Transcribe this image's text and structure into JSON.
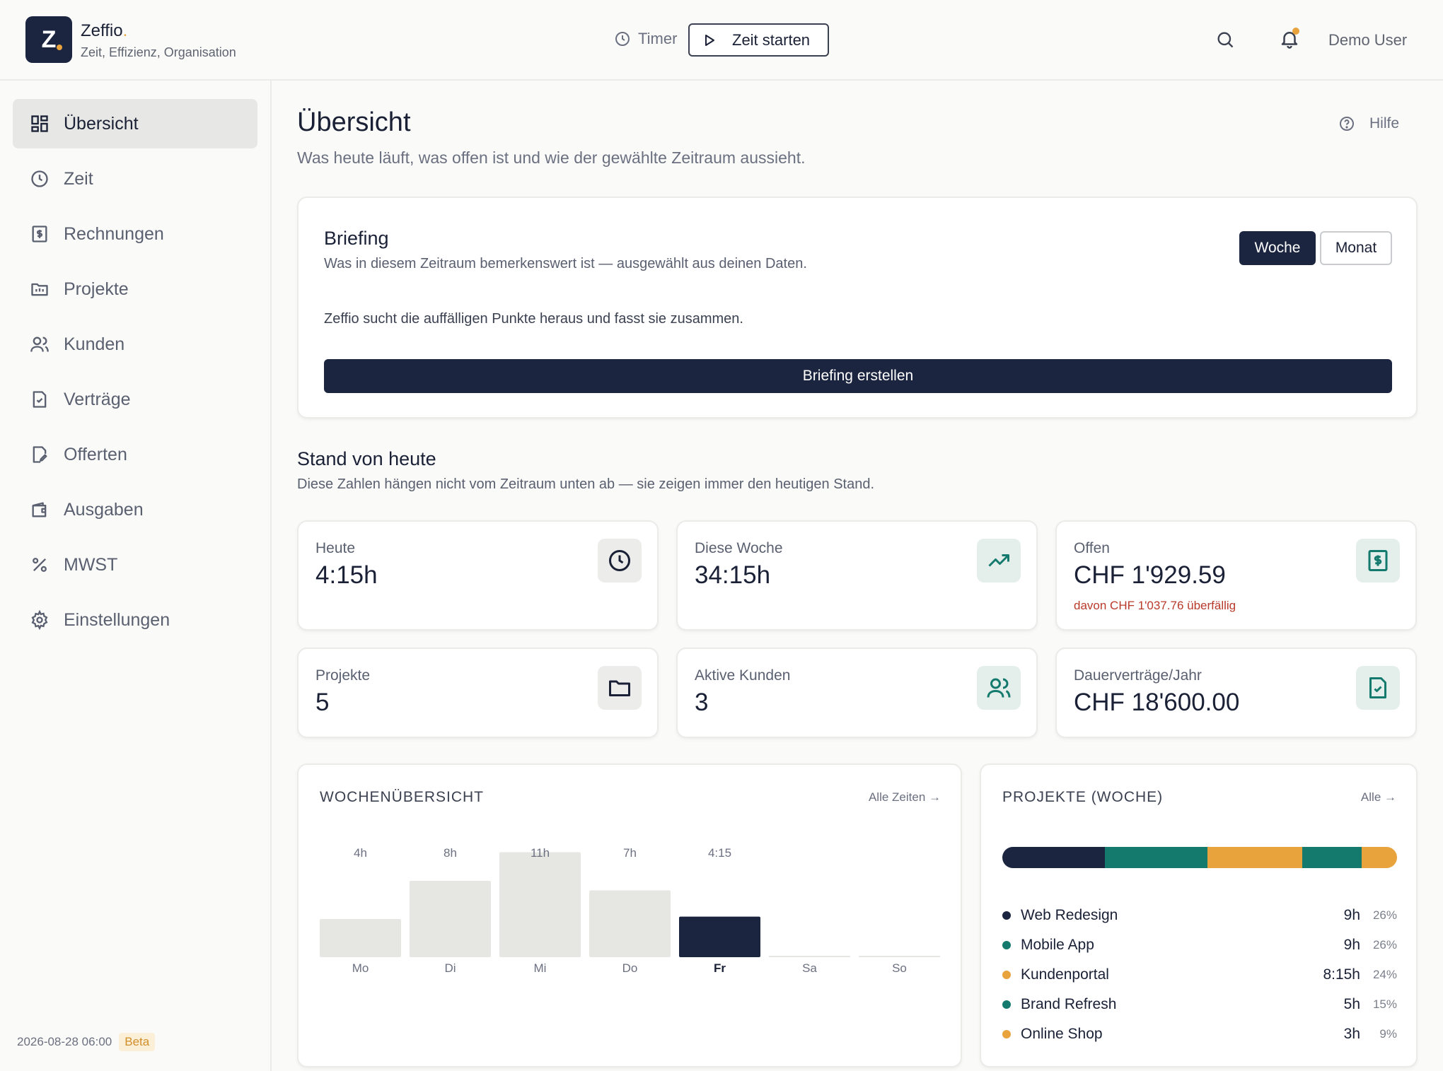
{
  "app": {
    "name": "Zeffio",
    "name_dot": ".",
    "logo_letter": "Z",
    "tagline": "Zeit, Effizienz, Organisation"
  },
  "header": {
    "timer_label": "Timer",
    "start_label": "Zeit starten",
    "user": "Demo User"
  },
  "sidebar": {
    "items": [
      {
        "label": "Übersicht",
        "icon": "dashboard-icon",
        "active": true
      },
      {
        "label": "Zeit",
        "icon": "clock-icon"
      },
      {
        "label": "Rechnungen",
        "icon": "invoice-icon"
      },
      {
        "label": "Projekte",
        "icon": "folder-icon"
      },
      {
        "label": "Kunden",
        "icon": "users-icon"
      },
      {
        "label": "Verträge",
        "icon": "contract-icon"
      },
      {
        "label": "Offerten",
        "icon": "offer-icon"
      },
      {
        "label": "Ausgaben",
        "icon": "wallet-icon"
      },
      {
        "label": "MWST",
        "icon": "percent-icon"
      },
      {
        "label": "Einstellungen",
        "icon": "gear-icon"
      }
    ],
    "timestamp": "2026-08-28 06:00",
    "badge": "Beta"
  },
  "page": {
    "title": "Übersicht",
    "subtitle": "Was heute läuft, was offen ist und wie der gewählte Zeitraum aussieht.",
    "help": "Hilfe"
  },
  "briefing": {
    "title": "Briefing",
    "subtitle": "Was in diesem Zeitraum bemerkenswert ist — ausgewählt aus deinen Daten.",
    "text": "Zeffio sucht die auffälligen Punkte heraus und fasst sie zusammen.",
    "period_options": [
      "Woche",
      "Monat"
    ],
    "selected_period": "Woche",
    "button": "Briefing erstellen"
  },
  "today": {
    "title": "Stand von heute",
    "subtitle": "Diese Zahlen hängen nicht vom Zeitraum unten ab — sie zeigen immer den heutigen Stand.",
    "stats": [
      {
        "label": "Heute",
        "value": "4:15h",
        "icon": "clock-icon"
      },
      {
        "label": "Diese Woche",
        "value": "34:15h",
        "icon": "trend-up-icon"
      },
      {
        "label": "Offen",
        "value": "CHF 1'929.59",
        "note": "davon CHF 1'037.76 überfällig",
        "icon": "invoice-icon"
      },
      {
        "label": "Projekte",
        "value": "5",
        "icon": "folder-icon"
      },
      {
        "label": "Aktive Kunden",
        "value": "3",
        "icon": "users-icon"
      },
      {
        "label": "Dauerverträge/Jahr",
        "value": "CHF 18'600.00",
        "icon": "contract-icon"
      }
    ]
  },
  "week_panel": {
    "title": "WOCHENÜBERSICHT",
    "link": "Alle Zeiten →"
  },
  "chart_data": {
    "type": "bar",
    "categories": [
      "Mo",
      "Di",
      "Mi",
      "Do",
      "Fr",
      "Sa",
      "So"
    ],
    "values": [
      4,
      8,
      11,
      7,
      4.25,
      0,
      0
    ],
    "value_labels": [
      "4h",
      "8h",
      "11h",
      "7h",
      "4:15",
      "",
      ""
    ],
    "highlight": "Fr",
    "colors": {
      "bar": "#e6e6e3",
      "highlight": "#1b2540"
    }
  },
  "projects_panel": {
    "title": "PROJEKTE (WOCHE)",
    "link": "Alle →",
    "items": [
      {
        "name": "Web Redesign",
        "hours": "9h",
        "pct": "26%",
        "share": 26,
        "color": "#1b2540"
      },
      {
        "name": "Mobile App",
        "hours": "9h",
        "pct": "26%",
        "share": 26,
        "color": "#157a6e"
      },
      {
        "name": "Kundenportal",
        "hours": "8:15h",
        "pct": "24%",
        "share": 24,
        "color": "#e8a33d"
      },
      {
        "name": "Brand Refresh",
        "hours": "5h",
        "pct": "15%",
        "share": 15,
        "color": "#157a6e"
      },
      {
        "name": "Online Shop",
        "hours": "3h",
        "pct": "9%",
        "share": 9,
        "color": "#e8a33d"
      }
    ]
  }
}
